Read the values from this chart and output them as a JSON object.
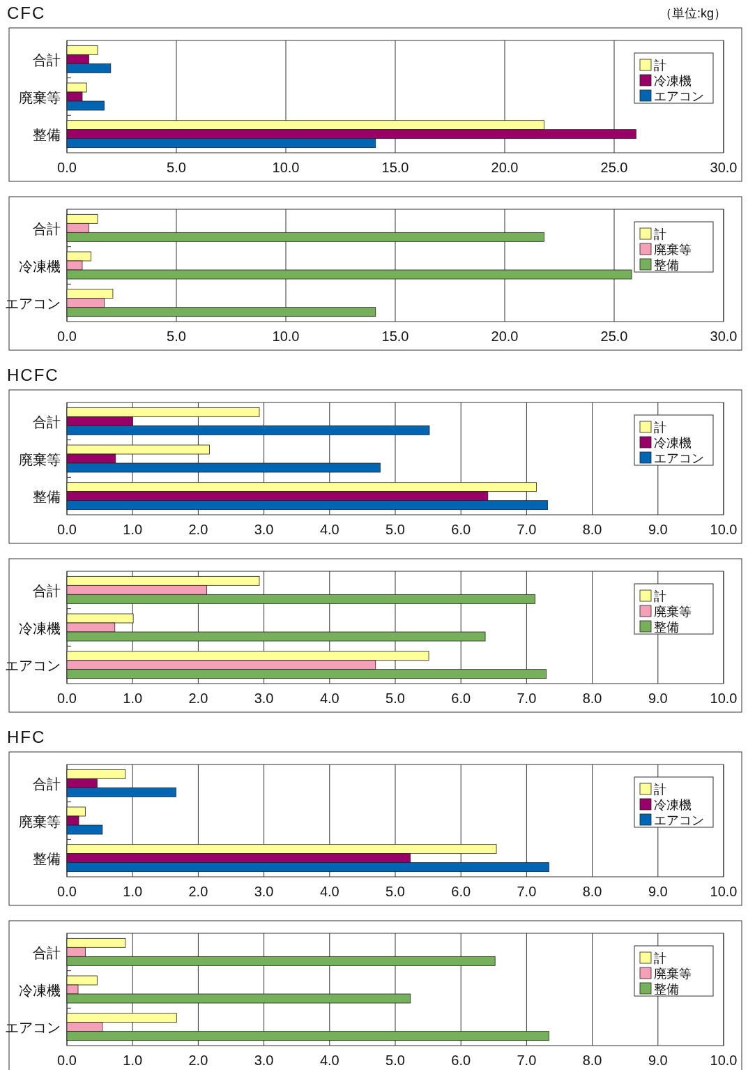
{
  "chart_data": [
    {
      "type": "bar",
      "orientation": "horizontal",
      "title": "CFC",
      "annotations": [
        "（単位:kg）"
      ],
      "categories": [
        "合計",
        "廃棄等",
        "整備"
      ],
      "grid": "x",
      "legend": "top right",
      "xlim": [
        0,
        30
      ],
      "xticks": [
        {
          "value": 0,
          "label": "0.0"
        },
        {
          "value": 5,
          "label": "5.0"
        },
        {
          "value": 10,
          "label": "10.0"
        },
        {
          "value": 15,
          "label": "15.0"
        },
        {
          "value": 20,
          "label": "20.0"
        },
        {
          "value": 25,
          "label": "25.0"
        },
        {
          "value": 30,
          "label": "30.0"
        }
      ],
      "series": [
        {
          "name": "計",
          "color": "#ffff99",
          "values": [
            1.4,
            0.9,
            21.8
          ]
        },
        {
          "name": "冷凍機",
          "color": "#990066",
          "values": [
            1.0,
            0.7,
            26.0
          ]
        },
        {
          "name": "エアコン",
          "color": "#0066b3",
          "values": [
            2.0,
            1.7,
            14.1
          ]
        }
      ]
    },
    {
      "type": "bar",
      "orientation": "horizontal",
      "categories": [
        "合計",
        "冷凍機",
        "エアコン"
      ],
      "grid": "x",
      "legend": "top right",
      "xlim": [
        0,
        30
      ],
      "xticks": [
        {
          "value": 0,
          "label": "0.0"
        },
        {
          "value": 5,
          "label": "5.0"
        },
        {
          "value": 10,
          "label": "10.0"
        },
        {
          "value": 15,
          "label": "15.0"
        },
        {
          "value": 20,
          "label": "20.0"
        },
        {
          "value": 25,
          "label": "25.0"
        },
        {
          "value": 30,
          "label": "30.0"
        }
      ],
      "series": [
        {
          "name": "計",
          "color": "#ffff99",
          "values": [
            1.4,
            1.1,
            2.1
          ]
        },
        {
          "name": "廃棄等",
          "color": "#f4a0b8",
          "values": [
            1.0,
            0.7,
            1.7
          ]
        },
        {
          "name": "整備",
          "color": "#77b05a",
          "values": [
            21.8,
            25.8,
            14.1
          ]
        }
      ]
    },
    {
      "type": "bar",
      "orientation": "horizontal",
      "title": "HCFC",
      "categories": [
        "合計",
        "廃棄等",
        "整備"
      ],
      "grid": "x",
      "legend": "top right",
      "xlim": [
        0,
        10
      ],
      "xticks": [
        {
          "value": 0,
          "label": "0.0"
        },
        {
          "value": 1,
          "label": "1.0"
        },
        {
          "value": 2,
          "label": "2.0"
        },
        {
          "value": 3,
          "label": "3.0"
        },
        {
          "value": 4,
          "label": "4.0"
        },
        {
          "value": 5,
          "label": "5.0"
        },
        {
          "value": 6,
          "label": "6.0"
        },
        {
          "value": 7,
          "label": "7.0"
        },
        {
          "value": 8,
          "label": "8.0"
        },
        {
          "value": 9,
          "label": "9.0"
        },
        {
          "value": 10,
          "label": "10.0"
        }
      ],
      "series": [
        {
          "name": "計",
          "color": "#ffff99",
          "values": [
            2.93,
            2.17,
            7.15
          ]
        },
        {
          "name": "冷凍機",
          "color": "#990066",
          "values": [
            1.0,
            0.74,
            6.41
          ]
        },
        {
          "name": "エアコン",
          "color": "#0066b3",
          "values": [
            5.52,
            4.77,
            7.32
          ]
        }
      ]
    },
    {
      "type": "bar",
      "orientation": "horizontal",
      "categories": [
        "合計",
        "冷凍機",
        "エアコン"
      ],
      "grid": "x",
      "legend": "top right",
      "xlim": [
        0,
        10
      ],
      "xticks": [
        {
          "value": 0,
          "label": "0.0"
        },
        {
          "value": 1,
          "label": "1.0"
        },
        {
          "value": 2,
          "label": "2.0"
        },
        {
          "value": 3,
          "label": "3.0"
        },
        {
          "value": 4,
          "label": "4.0"
        },
        {
          "value": 5,
          "label": "5.0"
        },
        {
          "value": 6,
          "label": "6.0"
        },
        {
          "value": 7,
          "label": "7.0"
        },
        {
          "value": 8,
          "label": "8.0"
        },
        {
          "value": 9,
          "label": "9.0"
        },
        {
          "value": 10,
          "label": "10.0"
        }
      ],
      "series": [
        {
          "name": "計",
          "color": "#ffff99",
          "values": [
            2.93,
            1.01,
            5.51
          ]
        },
        {
          "name": "廃棄等",
          "color": "#f4a0b8",
          "values": [
            2.13,
            0.73,
            4.7
          ]
        },
        {
          "name": "整備",
          "color": "#77b05a",
          "values": [
            7.13,
            6.37,
            7.3
          ]
        }
      ]
    },
    {
      "type": "bar",
      "orientation": "horizontal",
      "title": "HFC",
      "categories": [
        "合計",
        "廃棄等",
        "整備"
      ],
      "grid": "x",
      "legend": "top right",
      "xlim": [
        0,
        10
      ],
      "xticks": [
        {
          "value": 0,
          "label": "0.0"
        },
        {
          "value": 1,
          "label": "1.0"
        },
        {
          "value": 2,
          "label": "2.0"
        },
        {
          "value": 3,
          "label": "3.0"
        },
        {
          "value": 4,
          "label": "4.0"
        },
        {
          "value": 5,
          "label": "5.0"
        },
        {
          "value": 6,
          "label": "6.0"
        },
        {
          "value": 7,
          "label": "7.0"
        },
        {
          "value": 8,
          "label": "8.0"
        },
        {
          "value": 9,
          "label": "9.0"
        },
        {
          "value": 10,
          "label": "10.0"
        }
      ],
      "series": [
        {
          "name": "計",
          "color": "#ffff99",
          "values": [
            0.89,
            0.28,
            6.54
          ]
        },
        {
          "name": "冷凍機",
          "color": "#990066",
          "values": [
            0.46,
            0.18,
            5.23
          ]
        },
        {
          "name": "エアコン",
          "color": "#0066b3",
          "values": [
            1.66,
            0.54,
            7.34
          ]
        }
      ]
    },
    {
      "type": "bar",
      "orientation": "horizontal",
      "categories": [
        "合計",
        "冷凍機",
        "エアコン"
      ],
      "grid": "x",
      "legend": "top right",
      "xlim": [
        0,
        10
      ],
      "xticks": [
        {
          "value": 0,
          "label": "0.0"
        },
        {
          "value": 1,
          "label": "1.0"
        },
        {
          "value": 2,
          "label": "2.0"
        },
        {
          "value": 3,
          "label": "3.0"
        },
        {
          "value": 4,
          "label": "4.0"
        },
        {
          "value": 5,
          "label": "5.0"
        },
        {
          "value": 6,
          "label": "6.0"
        },
        {
          "value": 7,
          "label": "7.0"
        },
        {
          "value": 8,
          "label": "8.0"
        },
        {
          "value": 9,
          "label": "9.0"
        },
        {
          "value": 10,
          "label": "10.0"
        }
      ],
      "series": [
        {
          "name": "計",
          "color": "#ffff99",
          "values": [
            0.89,
            0.46,
            1.67
          ]
        },
        {
          "name": "廃棄等",
          "color": "#f4a0b8",
          "values": [
            0.28,
            0.17,
            0.54
          ]
        },
        {
          "name": "整備",
          "color": "#77b05a",
          "values": [
            6.52,
            5.23,
            7.34
          ]
        }
      ]
    }
  ]
}
